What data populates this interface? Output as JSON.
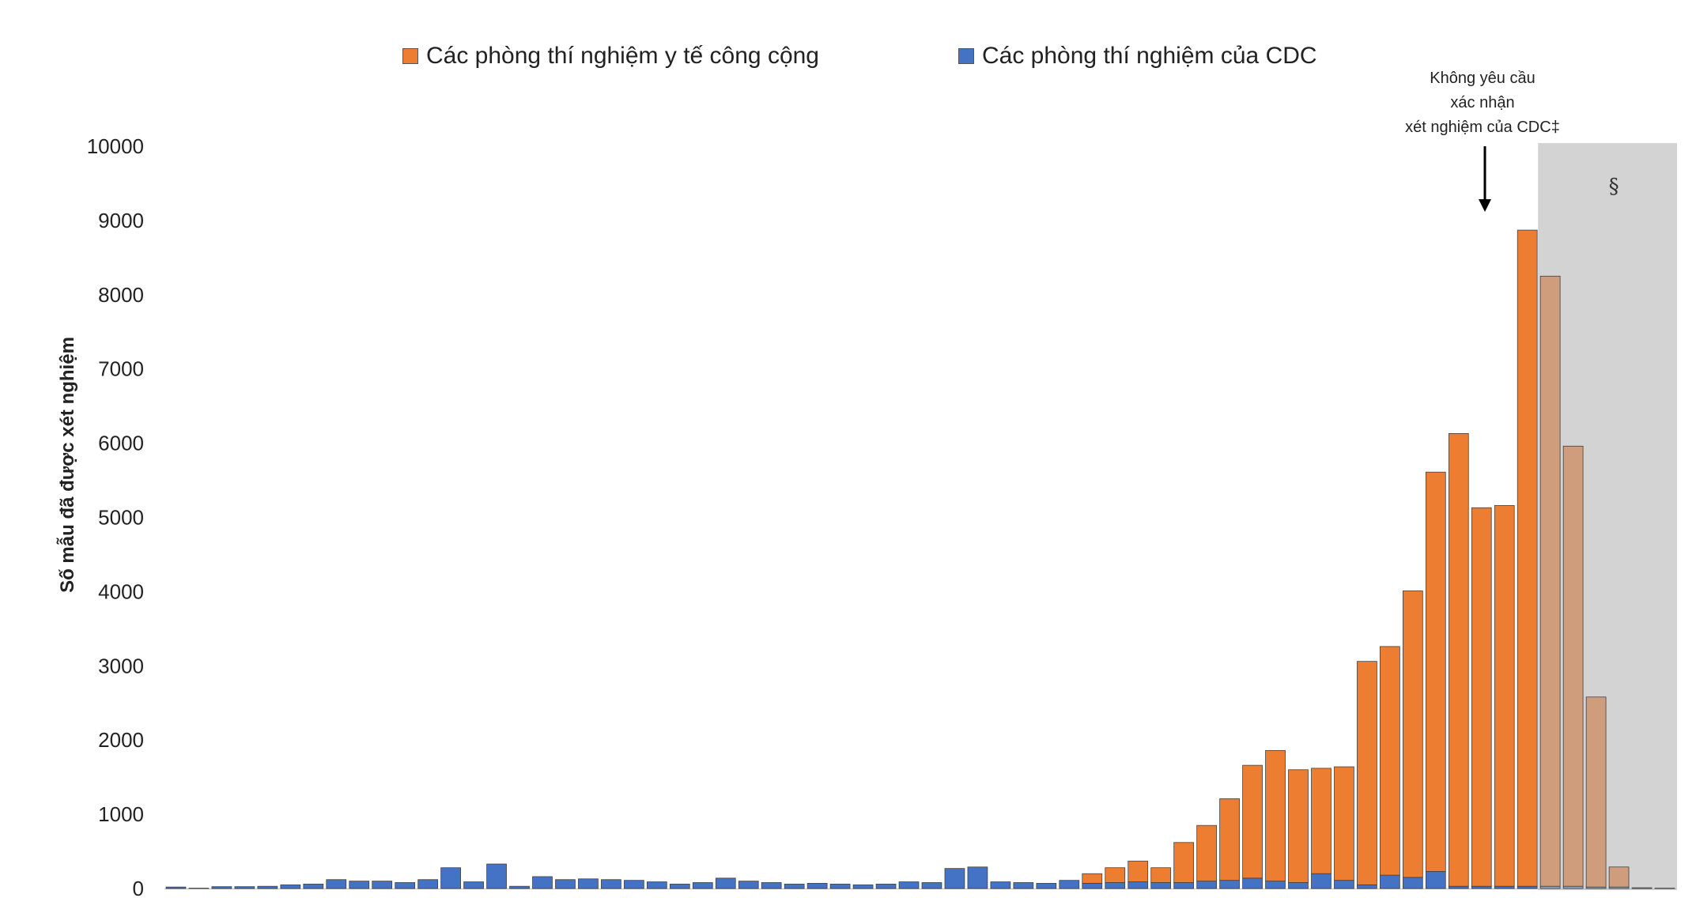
{
  "legend": {
    "public_health": "Các phòng thí nghiệm y tế công cộng",
    "cdc": "Các phòng thí nghiệm của CDC"
  },
  "annotation": {
    "line1": "Không yêu cầu",
    "line2": "xác nhận",
    "line3": "xét nghiệm của CDC‡"
  },
  "shaded_region_label": "§",
  "colors": {
    "public_health": "#ED7D31",
    "cdc": "#4472C4",
    "shaded_region": "#D3D3D3",
    "public_health_shaded": "#D09D7C",
    "cdc_shaded": "#8FA2BF"
  },
  "chart_data": {
    "type": "bar",
    "stacked": true,
    "ylabel": "Số mẫu đã được xét nghiệm",
    "ylim": [
      0,
      10000
    ],
    "yticks": [
      0,
      1000,
      2000,
      3000,
      4000,
      5000,
      6000,
      7000,
      8000,
      9000,
      10000
    ],
    "grid": false,
    "legend_position": "top",
    "series": [
      {
        "name": "Các phòng thí nghiệm của CDC",
        "values": [
          20,
          5,
          25,
          25,
          30,
          50,
          60,
          120,
          100,
          100,
          80,
          120,
          280,
          90,
          330,
          30,
          160,
          120,
          130,
          120,
          110,
          90,
          60,
          80,
          140,
          100,
          80,
          60,
          70,
          60,
          50,
          60,
          90,
          80,
          270,
          290,
          90,
          80,
          70,
          110,
          70,
          80,
          90,
          80,
          80,
          100,
          110,
          140,
          100,
          80,
          200,
          110,
          50,
          180,
          150,
          230,
          30,
          30,
          30,
          30,
          30,
          30,
          20,
          20,
          10,
          5
        ]
      },
      {
        "name": "Các phòng thí nghiệm y tế công cộng",
        "values": [
          0,
          0,
          0,
          0,
          0,
          0,
          0,
          0,
          0,
          0,
          0,
          0,
          0,
          0,
          0,
          0,
          0,
          0,
          0,
          0,
          0,
          0,
          0,
          0,
          0,
          0,
          0,
          0,
          0,
          0,
          0,
          0,
          0,
          0,
          0,
          0,
          0,
          0,
          0,
          0,
          130,
          200,
          280,
          200,
          540,
          750,
          1100,
          1520,
          1760,
          1520,
          1420,
          1530,
          3010,
          3080,
          3860,
          5380,
          6100,
          5100,
          5130,
          8840,
          8220,
          5930,
          2560,
          270,
          0,
          0
        ]
      }
    ],
    "shaded_from_index": 60
  }
}
